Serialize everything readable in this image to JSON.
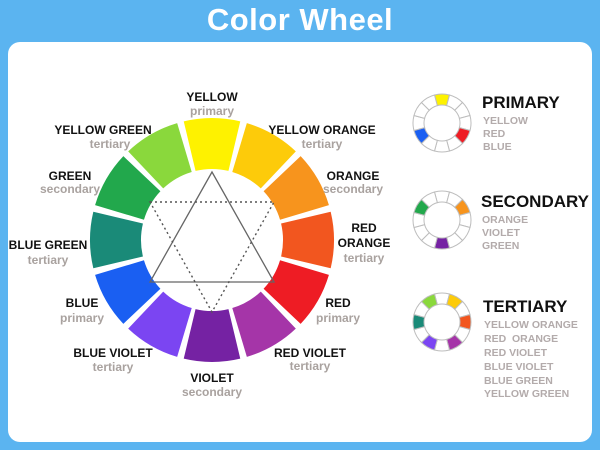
{
  "title": "Color Wheel",
  "wheel": {
    "segments": [
      {
        "name": "YELLOW",
        "type": "primary",
        "color": "#fef200"
      },
      {
        "name": "YELLOW ORANGE",
        "type": "tertiary",
        "color": "#fdcb0a"
      },
      {
        "name": "ORANGE",
        "type": "secondary",
        "color": "#f7941d"
      },
      {
        "name": "RED ORANGE",
        "type": "tertiary",
        "color": "#f2561f"
      },
      {
        "name": "RED",
        "type": "primary",
        "color": "#ee1c24"
      },
      {
        "name": "RED VIOLET",
        "type": "tertiary",
        "color": "#a535a8"
      },
      {
        "name": "VIOLET",
        "type": "secondary",
        "color": "#7522a3"
      },
      {
        "name": "BLUE VIOLET",
        "type": "tertiary",
        "color": "#7b45f2"
      },
      {
        "name": "BLUE",
        "type": "primary",
        "color": "#1a5ff2"
      },
      {
        "name": "BLUE GREEN",
        "type": "tertiary",
        "color": "#1a8a78"
      },
      {
        "name": "GREEN",
        "type": "secondary",
        "color": "#22a84c"
      },
      {
        "name": "YELLOW GREEN",
        "type": "tertiary",
        "color": "#8ad83c"
      }
    ],
    "labels": {
      "yellow": [
        "YELLOW",
        "primary"
      ],
      "yellow_green": [
        "YELLOW GREEN",
        "tertiary"
      ],
      "yellow_orange": [
        "YELLOW ORANGE",
        "tertiary"
      ],
      "green": [
        "GREEN",
        "secondary"
      ],
      "orange": [
        "ORANGE",
        "secondary"
      ],
      "blue_green": [
        "BLUE GREEN",
        "tertiary"
      ],
      "red_orange": [
        "RED",
        "ORANGE",
        "tertiary"
      ],
      "blue": [
        "BLUE",
        "primary"
      ],
      "red": [
        "RED",
        "primary"
      ],
      "blue_violet": [
        "BLUE VIOLET",
        "tertiary"
      ],
      "red_violet": [
        "RED VIOLET",
        "tertiary"
      ],
      "violet": [
        "VIOLET",
        "secondary"
      ]
    }
  },
  "legend": [
    {
      "heading": "PRIMARY",
      "items": [
        "YELLOW",
        "RED",
        "BLUE"
      ],
      "highlight": [
        0,
        4,
        8
      ]
    },
    {
      "heading": "SECONDARY",
      "items": [
        "ORANGE",
        "VIOLET",
        "GREEN"
      ],
      "highlight": [
        2,
        6,
        10
      ]
    },
    {
      "heading": "TERTIARY",
      "items": [
        "YELLOW ORANGE",
        "RED  ORANGE",
        "RED VIOLET",
        "BLUE VIOLET",
        "BLUE GREEN",
        "YELLOW GREEN"
      ],
      "highlight": [
        1,
        3,
        5,
        7,
        9,
        11
      ]
    }
  ]
}
